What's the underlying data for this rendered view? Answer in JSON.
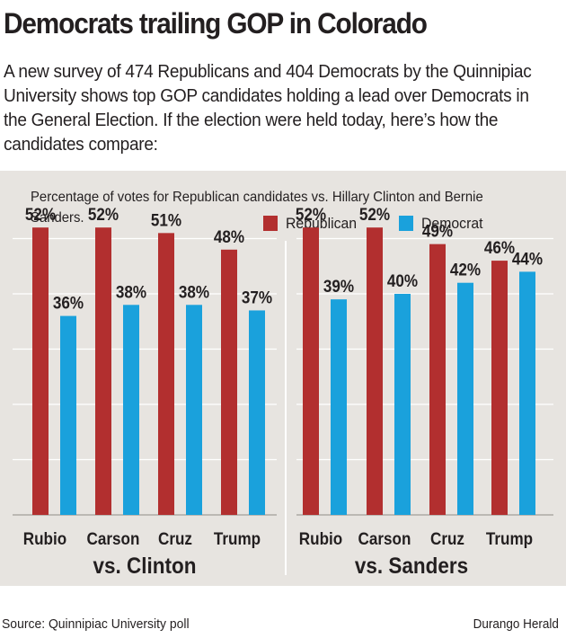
{
  "title": "Democrats trailing GOP in Colorado",
  "intro": "A new survey of 474 Republicans and 404 Democrats by the Quinnipiac University shows top GOP candidates holding a lead over Democrats in the General Election. If the election were held today, here’s how the candidates compare:",
  "source": "Source: Quinnipiac University poll",
  "credit": "Durango Herald",
  "colors": {
    "republican": "#b22f2f",
    "democrat": "#1aa1dc",
    "panel": "#e7e4e0",
    "grid": "#ffffff"
  },
  "chart_data": {
    "type": "bar",
    "subtitle": "Percentage of votes for Republican candidates vs. Hillary Clinton and Bernie Sanders.",
    "legend": [
      {
        "name": "Republican",
        "color": "#b22f2f"
      },
      {
        "name": "Democrat",
        "color": "#1aa1dc"
      }
    ],
    "legend_position": "top-right",
    "grid": true,
    "ylim": [
      0,
      60
    ],
    "value_suffix": "%",
    "panels": [
      {
        "label": "vs. Clinton",
        "categories": [
          "Rubio",
          "Carson",
          "Cruz",
          "Trump"
        ],
        "series": [
          {
            "name": "Republican",
            "values": [
              52,
              52,
              51,
              48
            ]
          },
          {
            "name": "Democrat",
            "values": [
              36,
              38,
              38,
              37
            ]
          }
        ]
      },
      {
        "label": "vs. Sanders",
        "categories": [
          "Rubio",
          "Carson",
          "Cruz",
          "Trump"
        ],
        "series": [
          {
            "name": "Republican",
            "values": [
              52,
              52,
              49,
              46
            ]
          },
          {
            "name": "Democrat",
            "values": [
              39,
              40,
              42,
              44
            ]
          }
        ]
      }
    ]
  }
}
